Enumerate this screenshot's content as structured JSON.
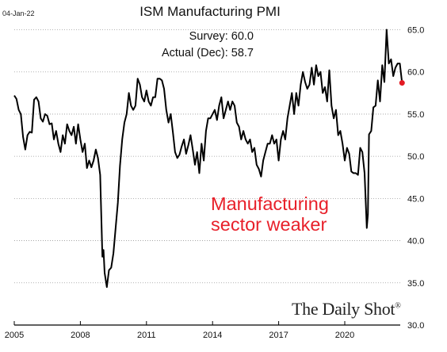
{
  "date_stamp": "04-Jan-22",
  "survey_text": "Survey: 60.0",
  "actual_text": "Actual (Dec): 58.7",
  "annotation": [
    "Manufacturing",
    "sector weaker"
  ],
  "brand": "The Daily Shot",
  "brand_mark": "®",
  "colors": {
    "line": "#000000",
    "marker": "#e31b23",
    "annotation": "#e8202a",
    "grid": "#9a9a9a"
  },
  "chart_data": {
    "type": "line",
    "title": "ISM Manufacturing PMI",
    "xlabel": "",
    "ylabel": "",
    "xlim": [
      2005.0,
      2022.3
    ],
    "ylim": [
      30,
      66
    ],
    "x_ticks": [
      2005,
      2008,
      2011,
      2014,
      2017,
      2020
    ],
    "x_tick_labels": [
      "2005",
      "2008",
      "2011",
      "2014",
      "2017",
      "2020"
    ],
    "y_ticks": [
      30,
      35,
      40,
      45,
      50,
      55,
      60,
      65
    ],
    "y_tick_labels": [
      "30.0",
      "35.0",
      "40.0",
      "45.0",
      "50.0",
      "55.0",
      "60.0",
      "65.0"
    ],
    "grid": "horizontal dotted",
    "legend": "none",
    "series": [
      {
        "values": [
          [
            2005.0,
            57.2
          ],
          [
            2005.1,
            56.8
          ],
          [
            2005.2,
            55.5
          ],
          [
            2005.3,
            55.0
          ],
          [
            2005.4,
            52.3
          ],
          [
            2005.5,
            50.8
          ],
          [
            2005.6,
            52.5
          ],
          [
            2005.7,
            52.9
          ],
          [
            2005.8,
            52.8
          ],
          [
            2005.9,
            56.7
          ],
          [
            2006.0,
            57.0
          ],
          [
            2006.1,
            56.5
          ],
          [
            2006.2,
            54.5
          ],
          [
            2006.3,
            54.1
          ],
          [
            2006.4,
            55.0
          ],
          [
            2006.5,
            54.8
          ],
          [
            2006.6,
            53.8
          ],
          [
            2006.7,
            53.9
          ],
          [
            2006.8,
            52.0
          ],
          [
            2006.9,
            53.0
          ],
          [
            2007.0,
            51.5
          ],
          [
            2007.1,
            50.5
          ],
          [
            2007.2,
            52.5
          ],
          [
            2007.3,
            51.5
          ],
          [
            2007.4,
            53.8
          ],
          [
            2007.5,
            53.0
          ],
          [
            2007.6,
            52.5
          ],
          [
            2007.7,
            53.5
          ],
          [
            2007.8,
            51.5
          ],
          [
            2007.9,
            53.8
          ],
          [
            2008.0,
            52.0
          ],
          [
            2008.1,
            50.5
          ],
          [
            2008.2,
            51.5
          ],
          [
            2008.3,
            48.6
          ],
          [
            2008.4,
            49.5
          ],
          [
            2008.5,
            48.7
          ],
          [
            2008.6,
            49.5
          ],
          [
            2008.7,
            50.8
          ],
          [
            2008.8,
            49.8
          ],
          [
            2008.9,
            47.8
          ],
          [
            2009.0,
            38.1
          ],
          [
            2009.05,
            38.9
          ],
          [
            2009.1,
            36.2
          ],
          [
            2009.2,
            34.5
          ],
          [
            2009.3,
            36.5
          ],
          [
            2009.4,
            36.8
          ],
          [
            2009.5,
            38.5
          ],
          [
            2009.6,
            41.5
          ],
          [
            2009.7,
            44.5
          ],
          [
            2009.8,
            48.9
          ],
          [
            2009.9,
            52.0
          ],
          [
            2010.0,
            54.0
          ],
          [
            2010.1,
            55.0
          ],
          [
            2010.2,
            57.5
          ],
          [
            2010.3,
            56.0
          ],
          [
            2010.4,
            55.5
          ],
          [
            2010.5,
            56.0
          ],
          [
            2010.6,
            59.2
          ],
          [
            2010.7,
            58.5
          ],
          [
            2010.8,
            57.0
          ],
          [
            2010.9,
            56.5
          ],
          [
            2011.0,
            57.8
          ],
          [
            2011.1,
            56.5
          ],
          [
            2011.2,
            56.0
          ],
          [
            2011.3,
            57.0
          ],
          [
            2011.4,
            57.0
          ],
          [
            2011.5,
            59.2
          ],
          [
            2011.6,
            59.2
          ],
          [
            2011.7,
            59.0
          ],
          [
            2011.8,
            58.0
          ],
          [
            2011.9,
            55.5
          ],
          [
            2012.0,
            54.0
          ],
          [
            2012.1,
            55.0
          ],
          [
            2012.2,
            52.8
          ],
          [
            2012.3,
            50.5
          ],
          [
            2012.4,
            49.8
          ],
          [
            2012.5,
            50.2
          ],
          [
            2012.6,
            51.2
          ],
          [
            2012.7,
            52.0
          ],
          [
            2012.8,
            50.3
          ],
          [
            2012.9,
            51.3
          ],
          [
            2013.0,
            52.5
          ],
          [
            2013.1,
            50.8
          ],
          [
            2013.2,
            49.0
          ],
          [
            2013.3,
            50.5
          ],
          [
            2013.4,
            48.0
          ],
          [
            2013.5,
            51.5
          ],
          [
            2013.6,
            49.5
          ],
          [
            2013.7,
            53.0
          ],
          [
            2013.8,
            54.5
          ],
          [
            2013.9,
            54.5
          ],
          [
            2014.0,
            55.0
          ],
          [
            2014.1,
            55.5
          ],
          [
            2014.2,
            54.3
          ],
          [
            2014.3,
            56.0
          ],
          [
            2014.4,
            57.0
          ],
          [
            2014.5,
            54.5
          ],
          [
            2014.6,
            55.5
          ],
          [
            2014.7,
            56.5
          ],
          [
            2014.8,
            55.5
          ],
          [
            2014.9,
            56.5
          ],
          [
            2015.0,
            56.0
          ],
          [
            2015.1,
            54.0
          ],
          [
            2015.2,
            53.5
          ],
          [
            2015.3,
            52.0
          ],
          [
            2015.4,
            53.0
          ],
          [
            2015.5,
            52.0
          ],
          [
            2015.6,
            51.5
          ],
          [
            2015.7,
            52.0
          ],
          [
            2015.8,
            50.5
          ],
          [
            2015.9,
            51.0
          ],
          [
            2016.0,
            49.0
          ],
          [
            2016.1,
            48.5
          ],
          [
            2016.2,
            47.6
          ],
          [
            2016.3,
            49.5
          ],
          [
            2016.4,
            50.5
          ],
          [
            2016.5,
            51.5
          ],
          [
            2016.6,
            51.5
          ],
          [
            2016.7,
            52.5
          ],
          [
            2016.8,
            51.5
          ],
          [
            2016.9,
            52.0
          ],
          [
            2017.0,
            49.5
          ],
          [
            2017.1,
            52.0
          ],
          [
            2017.2,
            53.0
          ],
          [
            2017.3,
            52.0
          ],
          [
            2017.4,
            54.5
          ],
          [
            2017.5,
            56.0
          ],
          [
            2017.6,
            57.5
          ],
          [
            2017.7,
            55.0
          ],
          [
            2017.8,
            57.5
          ],
          [
            2017.9,
            56.0
          ],
          [
            2018.0,
            58.5
          ],
          [
            2018.1,
            60.0
          ],
          [
            2018.2,
            58.8
          ],
          [
            2018.3,
            58.0
          ],
          [
            2018.4,
            58.5
          ],
          [
            2018.5,
            60.5
          ],
          [
            2018.6,
            58.5
          ],
          [
            2018.7,
            60.8
          ],
          [
            2018.8,
            59.5
          ],
          [
            2018.9,
            60.0
          ],
          [
            2019.0,
            57.5
          ],
          [
            2019.1,
            58.2
          ],
          [
            2019.2,
            56.5
          ],
          [
            2019.3,
            60.2
          ],
          [
            2019.4,
            56.0
          ],
          [
            2019.5,
            54.5
          ],
          [
            2019.6,
            55.5
          ],
          [
            2019.7,
            52.5
          ],
          [
            2019.8,
            53.0
          ],
          [
            2019.9,
            51.5
          ],
          [
            2020.0,
            49.5
          ],
          [
            2020.1,
            51.0
          ],
          [
            2020.2,
            50.3
          ],
          [
            2020.3,
            48.2
          ],
          [
            2020.4,
            48.0
          ],
          [
            2020.5,
            48.0
          ],
          [
            2020.6,
            47.8
          ],
          [
            2020.7,
            51.0
          ],
          [
            2020.8,
            50.5
          ],
          [
            2020.9,
            48.0
          ],
          [
            2021.0,
            41.5
          ],
          [
            2021.05,
            43.1
          ],
          [
            2021.1,
            52.6
          ],
          [
            2021.2,
            53.0
          ],
          [
            2021.3,
            55.8
          ],
          [
            2021.4,
            56.0
          ],
          [
            2021.5,
            59.0
          ],
          [
            2021.6,
            56.5
          ],
          [
            2021.7,
            60.8
          ],
          [
            2021.8,
            58.8
          ],
          [
            2021.9,
            65.0
          ],
          [
            2022.0,
            61.0
          ],
          [
            2022.1,
            61.5
          ],
          [
            2022.2,
            59.5
          ],
          [
            2022.3,
            60.5
          ],
          [
            2022.4,
            61.0
          ],
          [
            2022.5,
            61.0
          ],
          [
            2022.6,
            58.7
          ]
        ],
        "last_point": [
          2022.6,
          58.7
        ]
      }
    ]
  }
}
